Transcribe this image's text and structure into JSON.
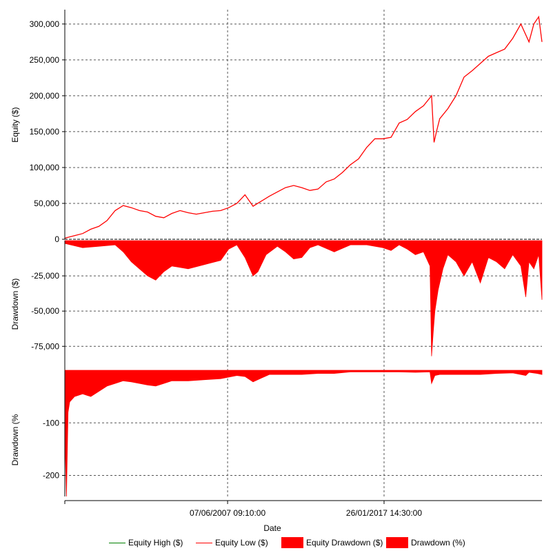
{
  "chart_data": [
    {
      "type": "line",
      "ylabel": "Equity ($)",
      "ylim": [
        0,
        320000
      ],
      "yticks": [
        0,
        50000,
        100000,
        150000,
        200000,
        250000,
        300000
      ],
      "ytick_labels": [
        "0",
        "50,000",
        "100,000",
        "150,000",
        "200,000",
        "250,000",
        "300,000"
      ],
      "grid": true,
      "series": [
        {
          "name": "Equity Low ($)",
          "color": "#ff0000",
          "x": [
            1997.4,
            1998.0,
            1998.5,
            1999.0,
            1999.5,
            2000.0,
            2000.5,
            2001.0,
            2001.5,
            2002.0,
            2002.5,
            2003.0,
            2003.5,
            2004.0,
            2004.5,
            2005.0,
            2005.5,
            2006.0,
            2006.5,
            2007.0,
            2007.5,
            2008.0,
            2008.5,
            2009.0,
            2009.5,
            2010.0,
            2010.5,
            2011.0,
            2011.5,
            2012.0,
            2012.5,
            2013.0,
            2013.5,
            2014.0,
            2014.5,
            2015.0,
            2015.5,
            2016.0,
            2016.5,
            2017.0,
            2017.5,
            2018.0,
            2018.5,
            2019.0,
            2019.5,
            2020.0,
            2020.15,
            2020.3,
            2020.5,
            2021.0,
            2021.5,
            2022.0,
            2022.5,
            2023.0,
            2023.5,
            2024.0,
            2024.5,
            2025.0,
            2025.5,
            2026.0,
            2026.3,
            2026.6,
            2026.8
          ],
          "y": [
            1500,
            5000,
            8000,
            14000,
            18000,
            26000,
            40000,
            47000,
            44000,
            40000,
            38000,
            32000,
            30000,
            36000,
            40000,
            37000,
            35000,
            37000,
            39000,
            40000,
            44000,
            50000,
            62000,
            46000,
            53000,
            60000,
            66000,
            72000,
            75000,
            72000,
            68000,
            70000,
            80000,
            84000,
            93000,
            104000,
            112000,
            128000,
            140000,
            140000,
            142000,
            162000,
            167000,
            178000,
            186000,
            200000,
            135000,
            150000,
            168000,
            182000,
            200000,
            226000,
            235000,
            245000,
            255000,
            260000,
            265000,
            280000,
            300000,
            275000,
            300000,
            310000,
            275000
          ]
        }
      ]
    },
    {
      "type": "area",
      "ylabel": "Drawdown ($)",
      "ylim": [
        -92000,
        0
      ],
      "yticks": [
        -25000,
        -50000,
        -75000
      ],
      "ytick_labels": [
        "-25,000",
        "-50,000",
        "-75,000"
      ],
      "grid": true,
      "series": [
        {
          "name": "Equity Drawdown ($)",
          "color": "#ff0000",
          "x": [
            1997.4,
            1998.5,
            1999.5,
            2000.5,
            2001.0,
            2001.5,
            2002.0,
            2002.5,
            2003.0,
            2003.5,
            2004.0,
            2005.0,
            2006.0,
            2007.0,
            2007.5,
            2008.0,
            2008.5,
            2009.0,
            2009.3,
            2009.8,
            2010.5,
            2011.0,
            2011.5,
            2012.0,
            2012.5,
            2013.0,
            2014.0,
            2015.0,
            2016.0,
            2017.0,
            2017.5,
            2018.0,
            2018.5,
            2019.0,
            2019.5,
            2019.9,
            2020.0,
            2020.1,
            2020.2,
            2020.4,
            2020.7,
            2021.0,
            2021.5,
            2022.0,
            2022.5,
            2023.0,
            2023.5,
            2024.0,
            2024.5,
            2025.0,
            2025.5,
            2025.8,
            2026.0,
            2026.3,
            2026.6,
            2026.8
          ],
          "y": [
            -2000,
            -5000,
            -4000,
            -3000,
            -8000,
            -15000,
            -20000,
            -25000,
            -28000,
            -22000,
            -18000,
            -20000,
            -17000,
            -14000,
            -6000,
            -3000,
            -12000,
            -25000,
            -22000,
            -10000,
            -4000,
            -8000,
            -13000,
            -12000,
            -5000,
            -3000,
            -8000,
            -3000,
            -3000,
            -5000,
            -7000,
            -3000,
            -6000,
            -10000,
            -8000,
            -18000,
            -82000,
            -65000,
            -50000,
            -35000,
            -20000,
            -10000,
            -15000,
            -25000,
            -15000,
            -30000,
            -12000,
            -15000,
            -20000,
            -10000,
            -18000,
            -40000,
            -15000,
            -20000,
            -10000,
            -42000
          ]
        }
      ]
    },
    {
      "type": "area",
      "xlabel": "Date",
      "ylabel": "Drawdown (%",
      "ylim": [
        -240,
        0
      ],
      "yticks": [
        -100,
        -200
      ],
      "ytick_labels": [
        "-100",
        "-200"
      ],
      "xticks": [
        2007.43,
        2017.07
      ],
      "xtick_labels": [
        "07/06/2007 09:10:00",
        "26/01/2017 14:30:00"
      ],
      "grid": true,
      "series": [
        {
          "name": "Drawdown (%)",
          "color": "#ff0000",
          "x": [
            1997.4,
            1997.5,
            1997.6,
            1997.7,
            1998.0,
            1998.5,
            1999.0,
            1999.5,
            2000.0,
            2000.5,
            2001.0,
            2001.5,
            2002.0,
            2002.5,
            2003.0,
            2003.5,
            2004.0,
            2005.0,
            2006.0,
            2007.0,
            2008.0,
            2008.5,
            2009.0,
            2009.5,
            2010.0,
            2011.0,
            2012.0,
            2013.0,
            2014.0,
            2015.0,
            2016.0,
            2017.0,
            2018.0,
            2019.0,
            2019.9,
            2020.0,
            2020.2,
            2020.5,
            2021.0,
            2022.0,
            2023.0,
            2024.0,
            2025.0,
            2025.8,
            2026.0,
            2026.5,
            2026.8
          ],
          "y": [
            -120,
            -240,
            -80,
            -60,
            -50,
            -45,
            -50,
            -40,
            -30,
            -25,
            -20,
            -22,
            -25,
            -28,
            -30,
            -25,
            -20,
            -20,
            -18,
            -16,
            -10,
            -12,
            -22,
            -15,
            -8,
            -8,
            -8,
            -6,
            -6,
            -3,
            -3,
            -3,
            -3,
            -4,
            -3,
            -25,
            -10,
            -8,
            -8,
            -8,
            -8,
            -6,
            -5,
            -10,
            -4,
            -6,
            -8
          ]
        }
      ]
    }
  ],
  "legend": {
    "items": [
      {
        "label": "Equity High ($)",
        "color": "#008000",
        "kind": "line"
      },
      {
        "label": "Equity Low ($)",
        "color": "#ff0000",
        "kind": "line"
      },
      {
        "label": "Equity Drawdown ($)",
        "color": "#ff0000",
        "kind": "box"
      },
      {
        "label": "Drawdown (%)",
        "color": "#ff0000",
        "kind": "box"
      }
    ]
  }
}
